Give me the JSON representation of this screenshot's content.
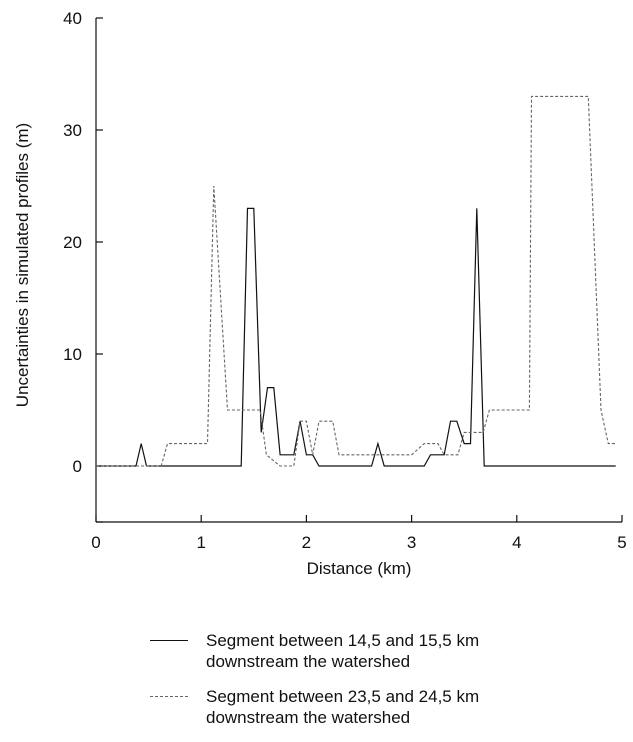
{
  "chart_data": {
    "type": "line",
    "title": "",
    "xlabel": "Distance (km)",
    "ylabel": "Uncertainties in simulated profiles (m)",
    "xlim": [
      0,
      5
    ],
    "ylim": [
      -5,
      40
    ],
    "xticks": [
      0,
      1,
      2,
      3,
      4,
      5
    ],
    "yticks": [
      0,
      10,
      20,
      30,
      40
    ],
    "grid": false,
    "legend_position": "bottom",
    "series": [
      {
        "name": "Segment between 14,5 and 15,5 km\ndownstream the watershed",
        "style": "solid",
        "color": "#111111",
        "points": [
          [
            0,
            0
          ],
          [
            0.38,
            0
          ],
          [
            0.43,
            2
          ],
          [
            0.48,
            0
          ],
          [
            1.0,
            0
          ],
          [
            1.38,
            0
          ],
          [
            1.44,
            23
          ],
          [
            1.5,
            23
          ],
          [
            1.57,
            3
          ],
          [
            1.63,
            7
          ],
          [
            1.69,
            7
          ],
          [
            1.75,
            1
          ],
          [
            1.88,
            1
          ],
          [
            1.94,
            4
          ],
          [
            2.0,
            1
          ],
          [
            2.06,
            1
          ],
          [
            2.12,
            0
          ],
          [
            2.25,
            0
          ],
          [
            2.62,
            0
          ],
          [
            2.68,
            2
          ],
          [
            2.74,
            0
          ],
          [
            3.12,
            0
          ],
          [
            3.18,
            1
          ],
          [
            3.31,
            1
          ],
          [
            3.37,
            4
          ],
          [
            3.43,
            4
          ],
          [
            3.5,
            2
          ],
          [
            3.56,
            2
          ],
          [
            3.62,
            23
          ],
          [
            3.69,
            0
          ],
          [
            4.0,
            0
          ],
          [
            4.94,
            0
          ]
        ]
      },
      {
        "name": "Segment between 23,5 and 24,5 km\ndownstream the watershed",
        "style": "dashed",
        "color": "#666666",
        "points": [
          [
            0,
            0
          ],
          [
            0.5,
            0
          ],
          [
            0.62,
            0
          ],
          [
            0.68,
            2
          ],
          [
            1.06,
            2
          ],
          [
            1.12,
            25
          ],
          [
            1.25,
            5
          ],
          [
            1.56,
            5
          ],
          [
            1.62,
            1
          ],
          [
            1.75,
            0
          ],
          [
            1.88,
            0
          ],
          [
            1.94,
            4
          ],
          [
            2.0,
            4
          ],
          [
            2.06,
            1
          ],
          [
            2.12,
            4
          ],
          [
            2.25,
            4
          ],
          [
            2.31,
            1
          ],
          [
            2.5,
            1
          ],
          [
            3.0,
            1
          ],
          [
            3.12,
            2
          ],
          [
            3.25,
            2
          ],
          [
            3.31,
            1
          ],
          [
            3.44,
            1
          ],
          [
            3.5,
            3
          ],
          [
            3.68,
            3
          ],
          [
            3.74,
            5
          ],
          [
            4.12,
            5
          ],
          [
            4.14,
            33
          ],
          [
            4.68,
            33
          ],
          [
            4.8,
            5
          ],
          [
            4.87,
            2
          ],
          [
            4.95,
            2
          ]
        ]
      }
    ]
  }
}
